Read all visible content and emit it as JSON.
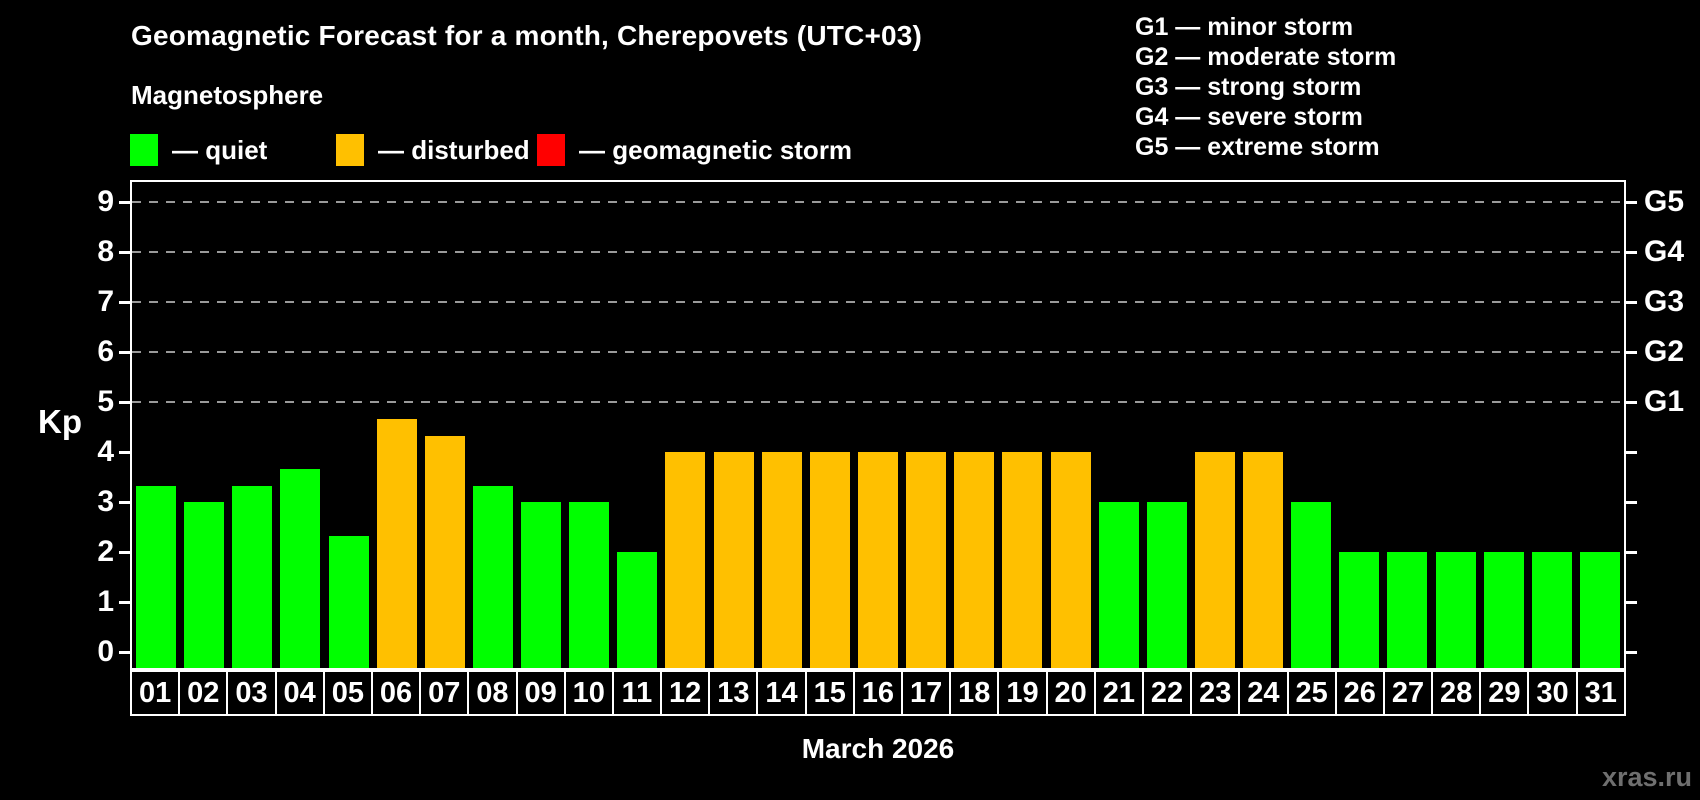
{
  "header": {
    "title": "Geomagnetic Forecast for a month, Cherepovets (UTC+03)",
    "subtitle": "Magnetosphere",
    "legend": [
      {
        "name": "quiet",
        "label": "— quiet",
        "color": "#00ff00"
      },
      {
        "name": "disturbed",
        "label": "— disturbed",
        "color": "#ffc000"
      },
      {
        "name": "storm",
        "label": "— geomagnetic storm",
        "color": "#ff0000"
      }
    ]
  },
  "storm_legend": [
    "G1 — minor storm",
    "G2 — moderate storm",
    "G3 — strong storm",
    "G4 — severe storm",
    "G5 — extreme storm"
  ],
  "chart_data": {
    "type": "bar",
    "title": "Geomagnetic Forecast for a month, Cherepovets (UTC+03)",
    "xlabel": "March 2026",
    "ylabel": "Kp",
    "ylim": [
      0,
      9
    ],
    "grid": "dashed horizontal lines at Kp 5-9 only",
    "legend_position": "top",
    "categories": [
      "01",
      "02",
      "03",
      "04",
      "05",
      "06",
      "07",
      "08",
      "09",
      "10",
      "11",
      "12",
      "13",
      "14",
      "15",
      "16",
      "17",
      "18",
      "19",
      "20",
      "21",
      "22",
      "23",
      "24",
      "25",
      "26",
      "27",
      "28",
      "29",
      "30",
      "31"
    ],
    "values": [
      3.33,
      3.0,
      3.33,
      3.67,
      2.33,
      4.67,
      4.33,
      3.33,
      3.0,
      3.0,
      2.0,
      4.0,
      4.0,
      4.0,
      4.0,
      4.0,
      4.0,
      4.0,
      4.0,
      4.0,
      3.0,
      3.0,
      4.0,
      4.0,
      3.0,
      2.0,
      2.0,
      2.0,
      2.0,
      2.0,
      2.0
    ],
    "levels": [
      "quiet",
      "quiet",
      "quiet",
      "quiet",
      "quiet",
      "disturbed",
      "disturbed",
      "quiet",
      "quiet",
      "quiet",
      "quiet",
      "disturbed",
      "disturbed",
      "disturbed",
      "disturbed",
      "disturbed",
      "disturbed",
      "disturbed",
      "disturbed",
      "disturbed",
      "quiet",
      "quiet",
      "disturbed",
      "disturbed",
      "quiet",
      "quiet",
      "quiet",
      "quiet",
      "quiet",
      "quiet",
      "quiet"
    ],
    "level_colors": {
      "quiet": "#00ff00",
      "disturbed": "#ffc000",
      "storm": "#ff0000"
    },
    "y_ticks": [
      0,
      1,
      2,
      3,
      4,
      5,
      6,
      7,
      8,
      9
    ],
    "right_ticks": [
      {
        "kp": 5,
        "label": "G1"
      },
      {
        "kp": 6,
        "label": "G2"
      },
      {
        "kp": 7,
        "label": "G3"
      },
      {
        "kp": 8,
        "label": "G4"
      },
      {
        "kp": 9,
        "label": "G5"
      }
    ],
    "gridlines_at": [
      5,
      6,
      7,
      8,
      9
    ]
  },
  "footer": {
    "month_label": "March 2026",
    "watermark": "xras.ru"
  }
}
